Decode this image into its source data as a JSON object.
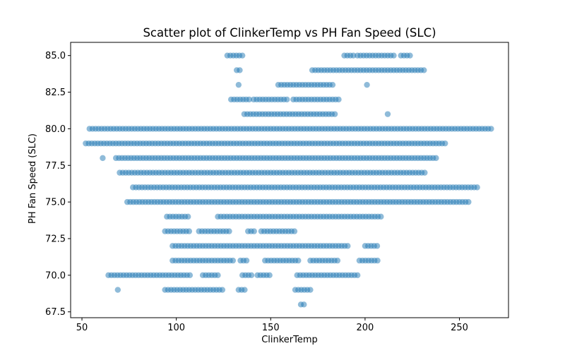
{
  "chart_data": {
    "type": "scatter",
    "title": "Scatter plot of ClinkerTemp vs PH Fan Speed (SLC)",
    "xlabel": "ClinkerTemp",
    "ylabel": "PH Fan Speed (SLC)",
    "xlim": [
      44,
      276
    ],
    "ylim": [
      67.1,
      85.9
    ],
    "xticks": [
      50,
      100,
      150,
      200,
      250
    ],
    "yticks": [
      67.5,
      70.0,
      72.5,
      75.0,
      77.5,
      80.0,
      82.5,
      85.0
    ],
    "xtick_labels": [
      "50",
      "100",
      "150",
      "200",
      "250"
    ],
    "ytick_labels": [
      "67.5",
      "70.0",
      "72.5",
      "75.0",
      "77.5",
      "80.0",
      "82.5",
      "85.0"
    ],
    "grid": false,
    "legend": "none",
    "marker_color": "#1f77b4",
    "marker_alpha": 0.5,
    "rows": [
      {
        "y": 85,
        "segments": [
          [
            127,
            135
          ],
          [
            189,
            194
          ],
          [
            196,
            216
          ],
          [
            219,
            224
          ]
        ]
      },
      {
        "y": 84,
        "segments": [
          [
            132,
            135
          ],
          [
            172,
            232
          ]
        ]
      },
      {
        "y": 83,
        "segments": [
          [
            133,
            134
          ],
          [
            154,
            184
          ],
          [
            201,
            202
          ]
        ]
      },
      {
        "y": 82,
        "segments": [
          [
            129,
            139
          ],
          [
            141,
            160
          ],
          [
            162,
            187
          ]
        ]
      },
      {
        "y": 81,
        "segments": [
          [
            136,
            185
          ],
          [
            212,
            212
          ]
        ]
      },
      {
        "y": 80,
        "segments": [
          [
            54,
            267
          ]
        ]
      },
      {
        "y": 79,
        "segments": [
          [
            52,
            243
          ]
        ]
      },
      {
        "y": 78,
        "segments": [
          [
            61,
            62
          ],
          [
            68,
            238
          ]
        ]
      },
      {
        "y": 77,
        "segments": [
          [
            70,
            233
          ]
        ]
      },
      {
        "y": 76,
        "segments": [
          [
            77,
            260
          ]
        ]
      },
      {
        "y": 75,
        "segments": [
          [
            74,
            256
          ]
        ]
      },
      {
        "y": 74,
        "segments": [
          [
            95,
            107
          ],
          [
            122,
            209
          ]
        ]
      },
      {
        "y": 73,
        "segments": [
          [
            94,
            107
          ],
          [
            112,
            128
          ],
          [
            138,
            142
          ],
          [
            145,
            163
          ]
        ]
      },
      {
        "y": 72,
        "segments": [
          [
            98,
            192
          ],
          [
            200,
            207
          ]
        ]
      },
      {
        "y": 71,
        "segments": [
          [
            98,
            130
          ],
          [
            134,
            138
          ],
          [
            147,
            165
          ],
          [
            171,
            186
          ],
          [
            197,
            207
          ]
        ]
      },
      {
        "y": 70,
        "segments": [
          [
            64,
            108
          ],
          [
            114,
            123
          ],
          [
            135,
            140
          ],
          [
            143,
            150
          ],
          [
            164,
            196
          ]
        ]
      },
      {
        "y": 69,
        "segments": [
          [
            69,
            70
          ],
          [
            94,
            125
          ],
          [
            133,
            137
          ],
          [
            163,
            172
          ]
        ]
      },
      {
        "y": 68,
        "segments": [
          [
            166,
            168
          ]
        ]
      }
    ]
  }
}
